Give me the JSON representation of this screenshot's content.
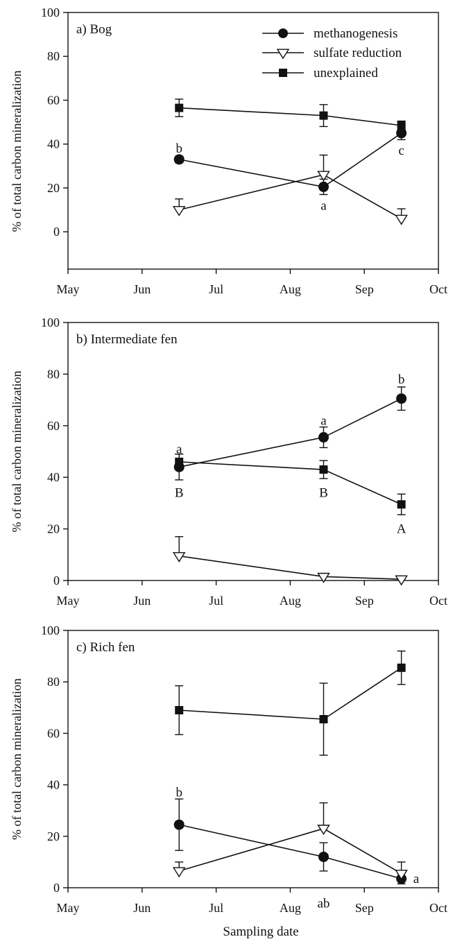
{
  "figure": {
    "xlabel": "Sampling date",
    "ylabel": "% of total carbon mineralization",
    "legend_position": "top-right (panel a)"
  },
  "legend": [
    {
      "name": "methanogenesis",
      "marker": "filled-circle"
    },
    {
      "name": "sulfate reduction",
      "marker": "open-triangle-down"
    },
    {
      "name": "unexplained",
      "marker": "filled-square"
    }
  ],
  "chart_data": [
    {
      "type": "line",
      "title": "a) Bog",
      "xlabel": "",
      "ylabel": "% of total carbon mineralization",
      "x_ticks": [
        "May",
        "Jun",
        "Jul",
        "Aug",
        "Sep",
        "Oct"
      ],
      "y_ticks": [
        0,
        20,
        40,
        60,
        80,
        100
      ],
      "ylim": [
        -17,
        100
      ],
      "x_dates": [
        "Jun 16",
        "Aug 14",
        "Sep 16"
      ],
      "grid": false,
      "series": [
        {
          "name": "methanogenesis",
          "marker": "circle",
          "x": [
            1.5,
            3.45,
            4.5
          ],
          "y": [
            33,
            20.5,
            45
          ],
          "err": [
            1.5,
            3.5,
            3
          ]
        },
        {
          "name": "sulfate reduction",
          "marker": "triangle",
          "x": [
            1.5,
            3.45,
            4.5
          ],
          "y": [
            10,
            26,
            6
          ],
          "err": [
            5,
            9,
            4.5
          ]
        },
        {
          "name": "unexplained",
          "marker": "square",
          "x": [
            1.5,
            3.45,
            4.5
          ],
          "y": [
            56.5,
            53,
            48.5
          ],
          "err": [
            4,
            5,
            2
          ]
        }
      ],
      "annotations": [
        {
          "text": "b",
          "x": 1.5,
          "y": 38
        },
        {
          "text": "a",
          "x": 3.45,
          "y": 12
        },
        {
          "text": "c",
          "x": 4.5,
          "y": 37
        }
      ]
    },
    {
      "type": "line",
      "title": "b) Intermediate fen",
      "xlabel": "",
      "ylabel": "% of total carbon mineralization",
      "x_ticks": [
        "May",
        "Jun",
        "Jul",
        "Aug",
        "Sep",
        "Oct"
      ],
      "y_ticks": [
        0,
        20,
        40,
        60,
        80,
        100
      ],
      "ylim": [
        0,
        100
      ],
      "x_dates": [
        "Jun 16",
        "Aug 14",
        "Sep 16"
      ],
      "grid": false,
      "series": [
        {
          "name": "methanogenesis",
          "marker": "circle",
          "x": [
            1.5,
            3.45,
            4.5
          ],
          "y": [
            44,
            55.5,
            70.5
          ],
          "err": [
            5,
            4,
            4.5
          ]
        },
        {
          "name": "sulfate reduction",
          "marker": "triangle",
          "x": [
            1.5,
            3.45,
            4.5
          ],
          "y": [
            9.5,
            1.5,
            0.5
          ],
          "err": [
            7.5,
            0.5,
            0.3
          ]
        },
        {
          "name": "unexplained",
          "marker": "square",
          "x": [
            1.5,
            3.45,
            4.5
          ],
          "y": [
            46,
            43,
            29.5
          ],
          "err": [
            3,
            3.5,
            4
          ]
        }
      ],
      "annotations": [
        {
          "text": "a",
          "x": 1.5,
          "y": 51
        },
        {
          "text": "B",
          "x": 1.5,
          "y": 34
        },
        {
          "text": "a",
          "x": 3.45,
          "y": 62
        },
        {
          "text": "B",
          "x": 3.45,
          "y": 34
        },
        {
          "text": "b",
          "x": 4.5,
          "y": 78
        },
        {
          "text": "A",
          "x": 4.5,
          "y": 20
        }
      ]
    },
    {
      "type": "line",
      "title": "c) Rich fen",
      "xlabel": "Sampling date",
      "ylabel": "% of total carbon mineralization",
      "x_ticks": [
        "May",
        "Jun",
        "Jul",
        "Aug",
        "Sep",
        "Oct"
      ],
      "y_ticks": [
        0,
        20,
        40,
        60,
        80,
        100
      ],
      "ylim": [
        0,
        100
      ],
      "x_dates": [
        "Jun 16",
        "Aug 14",
        "Sep 16"
      ],
      "grid": false,
      "series": [
        {
          "name": "methanogenesis",
          "marker": "circle",
          "x": [
            1.5,
            3.45,
            4.5
          ],
          "y": [
            24.5,
            12,
            3.5
          ],
          "err": [
            10,
            5.5,
            2
          ]
        },
        {
          "name": "sulfate reduction",
          "marker": "triangle",
          "x": [
            1.5,
            3.45,
            4.5
          ],
          "y": [
            6.5,
            23,
            5.5
          ],
          "err": [
            3.5,
            10,
            4.5
          ]
        },
        {
          "name": "unexplained",
          "marker": "square",
          "x": [
            1.5,
            3.45,
            4.5
          ],
          "y": [
            69,
            65.5,
            85.5
          ],
          "err": [
            9.5,
            14,
            6.5
          ]
        }
      ],
      "annotations": [
        {
          "text": "b",
          "x": 1.5,
          "y": 37
        },
        {
          "text": "ab",
          "x": 3.45,
          "y": -6
        },
        {
          "text": "a",
          "x": 4.7,
          "y": 3.5
        }
      ]
    }
  ]
}
